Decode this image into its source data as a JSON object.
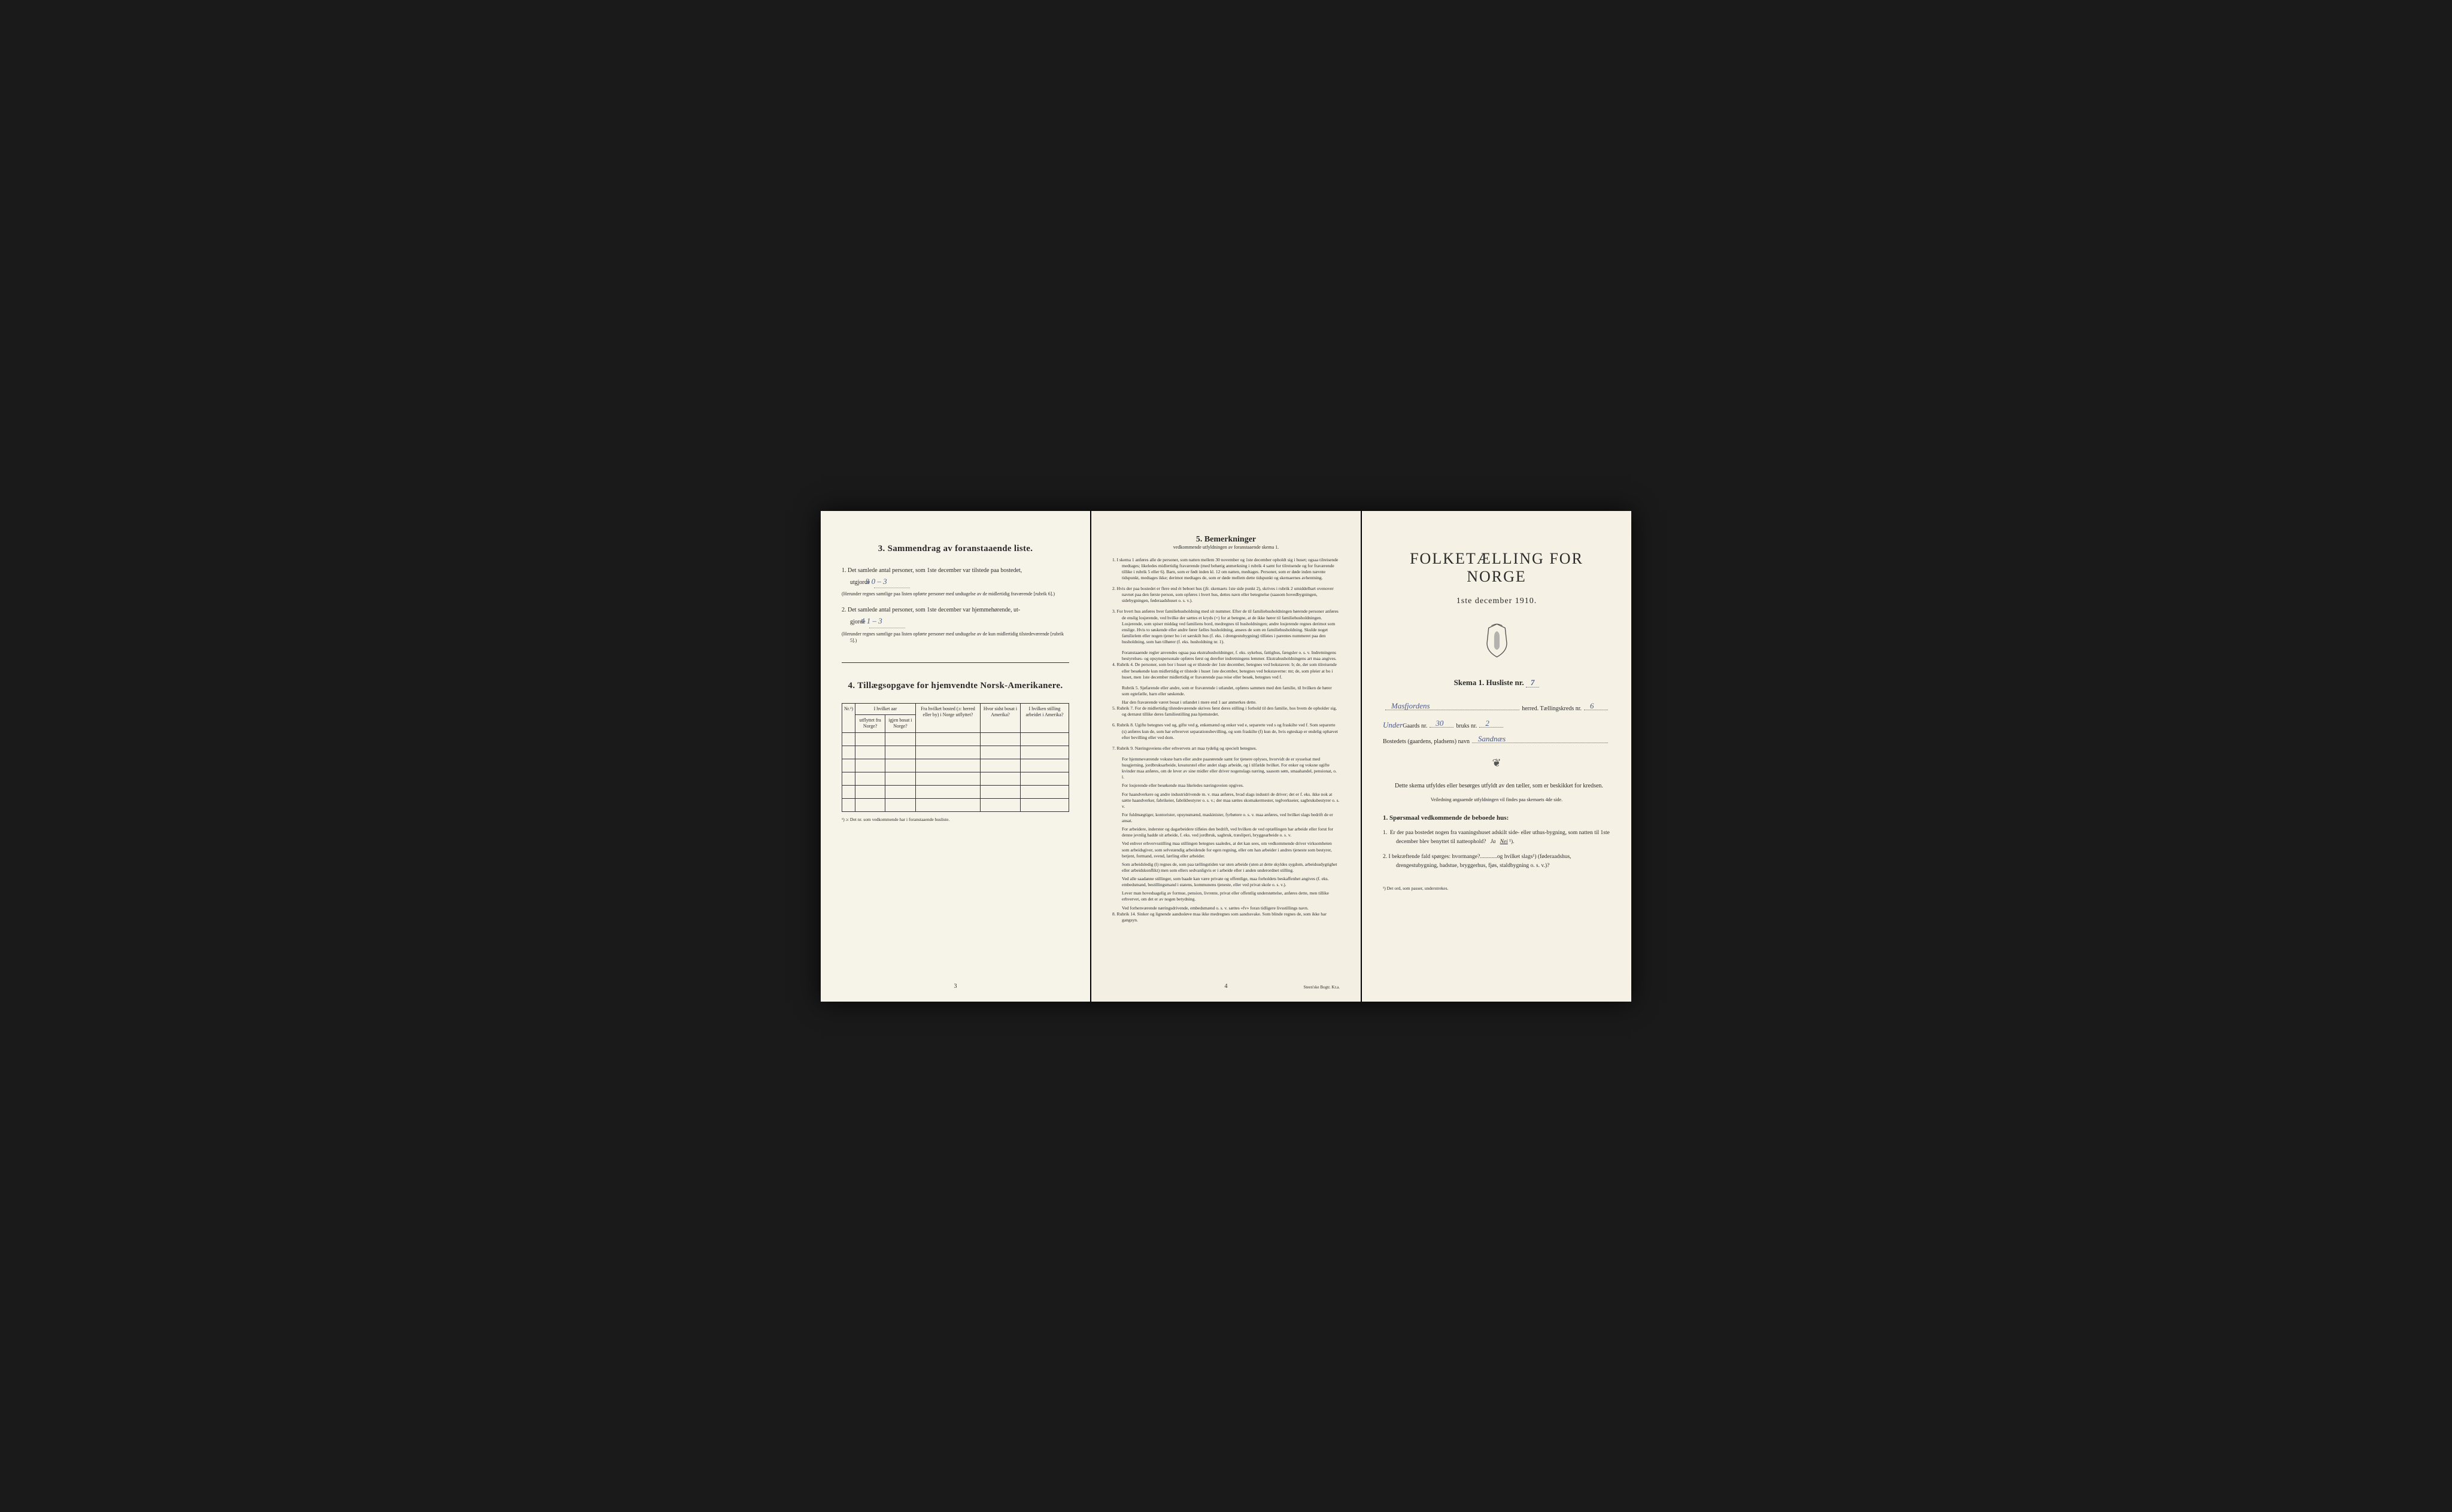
{
  "colors": {
    "paper_left": "#f6f3e8",
    "paper_middle": "#f3efe2",
    "paper_right": "#f5f1e5",
    "ink": "#2a2a2a",
    "handwriting": "#4a5a8a",
    "background": "#1a1a1a"
  },
  "left_panel": {
    "section3": {
      "num": "3.",
      "title": "Sammendrag av foranstaaende liste.",
      "item1_pre": "1. Det samlede antal personer, som 1ste december var tilstede paa bostedet,",
      "item1_label": "utgjorde",
      "item1_value": "3   0 – 3",
      "item1_note": "(Herunder regnes samtlige paa listen opførte personer med undtagelse av de midlertidig fraværende [rubrik 6].)",
      "item2_pre": "2. Det samlede antal personer, som 1ste december var hjemmehørende, ut-",
      "item2_label": "gjorde",
      "item2_value": "4   1 – 3",
      "item2_note": "(Herunder regnes samtlige paa listen opførte personer med undtagelse av de kun midlertidig tilstedeværende [rubrik 5].)"
    },
    "section4": {
      "num": "4.",
      "title": "Tillægsopgave for hjemvendte Norsk-Amerikanere.",
      "columns": [
        "Nr.¹)",
        "I hvilket aar utflyttet fra Norge?",
        "igjen bosat i Norge?",
        "Fra hvilket bosted (ɔ: herred eller by) i Norge utflyttet?",
        "Hvor sidst bosat i Amerika?",
        "I hvilken stilling arbeidet i Amerika?"
      ],
      "empty_rows": 6,
      "footnote": "¹) ɔ: Det nr. som vedkommende har i foranstaaende husliste."
    },
    "page_num": "3"
  },
  "middle_panel": {
    "title_num": "5.",
    "title": "Bemerkninger",
    "subtitle": "vedkommende utfyldningen av foranstaaende skema 1.",
    "remarks": [
      {
        "num": "1.",
        "text": "I skema 1 anføres alle de personer, som natten mellem 30 november og 1ste december opholdt sig i huset; ogsaa tilreisende medtages; likeledes midlertidig fraværende (med behørig anmerkning i rubrik 4 samt for tilreisende og for fraværende tillike i rubrik 5 eller 6). Barn, som er født inden kl. 12 om natten, medtages. Personer, som er døde inden nævnte tidspunkt, medtages ikke; derimot medtages de, som er døde mellem dette tidspunkt og skemaernes avhentning."
      },
      {
        "num": "2.",
        "text": "Hvis der paa bostedet er flere end ét beboet hus (jfr. skemaets 1ste side punkt 2), skrives i rubrik 2 umiddelbart ovenover navnet paa den første person, som opføres i hvert hus, dettes navn eller betegnelse (saasom hovedbygningen, sidebygningen, føderaadshuset o. s. v.)."
      },
      {
        "num": "3.",
        "text": "For hvert hus anføres hver familiehusholdning med sit nummer. Efter de til familiehusholdningen hørende personer anføres de enslig losjerende, ved hvilke der sættes et kryds (×) for at betegne, at de ikke hører til familiehusholdningen. Losjerende, som spiser middag ved familiens bord, medregnes til husholdningen; andre losjerende regnes derimot som enslige. Hvis to søskende eller andre fører fælles husholdning, ansees de som en familiehusholdning. Skulde noget familielem eller nogen tjener bo i et særskilt hus (f. eks. i drengestubygning) tilføies i parentes nummeret paa den husholdning, som han tilhører (f. eks. husholdning nr. 1).",
        "paras": [
          "Foranstaaende regler anvendes ogsaa paa ekstrahusholdninger, f. eks. sykehus, fattighus, fængsler o. s. v. Indretningens bestyrelses- og opsynspersonale opføres først og derefter indretningens lemmer. Ekstrahusholdningens art maa angives."
        ]
      },
      {
        "num": "4.",
        "text": "Rubrik 4. De personer, som bor i huset og er tilstede der 1ste december, betegnes ved bokstaven: b; de, der som tilreisende eller besøkende kun midlertidig er tilstede i huset 1ste december, betegnes ved bokstaverne: mt; de, som pleier at bo i huset, men 1ste december midlertidig er fraværende paa reise eller besøk, betegnes ved f.",
        "paras": [
          "Rubrik 5. Sjøfarende eller andre, som er fraværende i utlandet, opføres sammen med den familie, til hvilken de hører som egtefælle, barn eller søskende.",
          "Har den fraværende været bosat i utlandet i mere end 1 aar anmerkes dette."
        ]
      },
      {
        "num": "5.",
        "text": "Rubrik 7. For de midlertidig tilstedeværende skrives først deres stilling i forhold til den familie, hos hvem de opholder sig, og dernæst tillike deres familiestilling paa hjemstedet."
      },
      {
        "num": "6.",
        "text": "Rubrik 8. Ugifte betegnes ved ug, gifte ved g, enkemænd og enker ved e, separerte ved s og fraskilte ved f. Som separerte (s) anføres kun de, som har erhvervet separationsbevilling, og som fraskilte (f) kun de, hvis egteskap er endelig ophævet efter bevilling eller ved dom."
      },
      {
        "num": "7.",
        "text": "Rubrik 9. Næringsveiens eller erhvervets art maa tydelig og specielt betegnes.",
        "paras": [
          "For hjemmeværende voksne barn eller andre paarørende samt for tjenere oplyses, hvorvidt de er sysselsat med husgjerning, jordbruksarbeide, kreaturstel eller andet slags arbeide, og i tilfælde hvilket. For enker og voksne ugifte kvinder maa anføres, om de lever av sine midler eller driver nogenslags næring, saasom søm, smaahandel, pensionat, o. l.",
          "For losjerende eller besøkende maa likeledes næringsveien opgives.",
          "For haandverkere og andre industridrivende m. v. maa anføres, hvad slags industri de driver; det er f. eks. ikke nok at sætte haandverker, fabrikeier, fabrikbestyrer o. s. v.; der maa sættes skomakermester, teglverkseier, sagbruksbestyrer o. s. v.",
          "For fuldmægtiger, kontorister, opsynsmænd, maskinister, fyrbøtere o. s. v. maa anføres, ved hvilket slags bedrift de er ansat.",
          "For arbeidere, inderster og dagarbeidere tilføies den bedrift, ved hvilken de ved optællingen har arbeide eller forut for denne jevnlig hadde sit arbeide, f. eks. ved jordbruk, sagbruk, træsliperi, bryggearbeide o. s. v.",
          "Ved enhver erhvervsstilling maa stillingen betegnes saaledes, at det kan sees, om vedkommende driver virksomheten som arbeidsgiver, som selvstændig arbeidende for egen regning, eller om han arbeider i andres tjeneste som bestyrer, betjent, formand, svend, lærling eller arbeider.",
          "Som arbeidsledig (l) regnes de, som paa tællingstiden var uten arbeide (uten at dette skyldes sygdom, arbeidsudygtighet eller arbeidskonflikt) men som ellers sedvanligvis er i arbeide eller i anden underordnet stilling.",
          "Ved alle saadanne stillinger, som baade kan være private og offentlige, maa forholdets beskaffenhet angives (f. eks. embedsmand, bestillingsmand i statens, kommunens tjeneste, eller ved privat skole o. s. v.).",
          "Lever man hovedsagelig av formue, pension, livrente, privat eller offentlig understøttelse, anføres dette, men tillike erhvervet, om det er av nogen betydning.",
          "Ved forhenværende næringsdrivende, embedsmænd o. s. v. sættes «fv» foran tidligere livsstillings navn."
        ]
      },
      {
        "num": "8.",
        "text": "Rubrik 14. Sinker og lignende aandssløve maa ikke medregnes som aandssvake. Som blinde regnes de, som ikke har gangsyn."
      }
    ],
    "page_num": "4",
    "printer": "Steen'ske Bogtr. Kr.a."
  },
  "right_panel": {
    "main_title": "FOLKETÆLLING FOR NORGE",
    "date": "1ste december 1910.",
    "skema_label": "Skema 1.  Husliste nr.",
    "skema_value": "7",
    "herred_value": "Masfjordens",
    "herred_label": "herred.  Tællingskreds nr.",
    "kreds_value": "6",
    "gaard_prefix": "Under",
    "gaard_label": "Gaards nr.",
    "gaard_value": "30",
    "bruk_label": "bruks nr.",
    "bruk_value": "2",
    "bosted_label": "Bostedets (gaardens, pladsens) navn",
    "bosted_value": "Sandnæs",
    "instruction": "Dette skema utfyldes eller besørges utfyldt av den tæller, som er beskikket for kredsen.",
    "instruction_small": "Veiledning angaaende utfyldningen vil findes paa skemaets 4de side.",
    "q_heading": "1. Spørsmaal vedkommende de beboede hus:",
    "q1": "1.  Er der paa bostedet nogen fra vaaningshuset adskilt side- eller uthus-bygning, som natten til 1ste december blev benyttet til natteophold?   Ja   Nei ¹).",
    "q1_answer": "Nei",
    "q2": "2.  I bekræftende fald spørges: hvormange?............og hvilket slags¹) (føderaadshus, drengestubygning, badstue, bryggerhus, fjøs, staldbygning o. s. v.)?",
    "footnote": "¹) Det ord, som passer, understrekes."
  }
}
